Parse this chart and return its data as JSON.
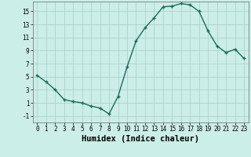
{
  "x": [
    0,
    1,
    2,
    3,
    4,
    5,
    6,
    7,
    8,
    9,
    10,
    11,
    12,
    13,
    14,
    15,
    16,
    17,
    18,
    19,
    20,
    21,
    22,
    23
  ],
  "y": [
    5.2,
    4.2,
    3.0,
    1.5,
    1.2,
    1.0,
    0.5,
    0.2,
    -0.7,
    2.0,
    6.5,
    10.5,
    12.5,
    14.0,
    15.7,
    15.8,
    16.2,
    16.0,
    15.0,
    12.0,
    9.7,
    8.7,
    9.2,
    7.8
  ],
  "line_color": "#1a6b5a",
  "marker": "+",
  "marker_size": 3,
  "marker_linewidth": 1.0,
  "line_width": 1.0,
  "xlabel": "Humidex (Indice chaleur)",
  "xlim": [
    -0.5,
    23.5
  ],
  "ylim": [
    -2.0,
    16.5
  ],
  "yticks": [
    -1,
    1,
    3,
    5,
    7,
    9,
    11,
    13,
    15
  ],
  "xticks": [
    0,
    1,
    2,
    3,
    4,
    5,
    6,
    7,
    8,
    9,
    10,
    11,
    12,
    13,
    14,
    15,
    16,
    17,
    18,
    19,
    20,
    21,
    22,
    23
  ],
  "bg_color": "#cceee8",
  "grid_color": "#aacccc",
  "tick_label_fontsize": 5.5,
  "xlabel_fontsize": 7.5
}
